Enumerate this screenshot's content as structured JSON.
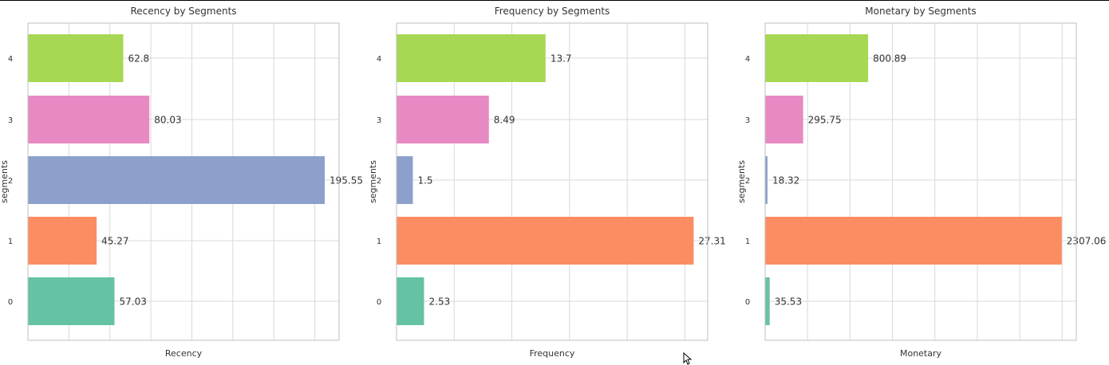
{
  "figure": {
    "ylabel": "segments",
    "bar_colors": [
      "#66c2a5",
      "#fc8d62",
      "#8da0cb",
      "#e78ac3",
      "#a6d854"
    ],
    "grid_color": "#d9d9d9",
    "frame_color": "#bfbfbf",
    "text_color": "#333333",
    "cursor_icon": "mouse-pointer-icon"
  },
  "chart_data": [
    {
      "type": "bar",
      "orientation": "horizontal",
      "title": "Recency by Segments",
      "xlabel": "Recency",
      "ylabel": "segments",
      "categories": [
        "0",
        "1",
        "2",
        "3",
        "4"
      ],
      "values": [
        57.03,
        45.27,
        195.55,
        80.03,
        62.8
      ],
      "value_labels": [
        "57.03",
        "45.27",
        "195.55",
        "80.03",
        "62.8"
      ],
      "xlim": [
        0,
        205
      ],
      "x_gridlines": [
        0,
        27,
        54,
        81,
        108,
        135,
        162,
        189
      ],
      "grid": true,
      "x_tick_labels": false
    },
    {
      "type": "bar",
      "orientation": "horizontal",
      "title": "Frequency by Segments",
      "xlabel": "Frequency",
      "ylabel": "segments",
      "categories": [
        "0",
        "1",
        "2",
        "3",
        "4"
      ],
      "values": [
        2.53,
        27.31,
        1.5,
        8.49,
        13.7
      ],
      "value_labels": [
        "2.53",
        "27.31",
        "1.5",
        "8.49",
        "13.7"
      ],
      "xlim": [
        0,
        28.6
      ],
      "x_gridlines": [
        0,
        5.3,
        10.6,
        15.9,
        21.2,
        26.5
      ],
      "grid": true,
      "x_tick_labels": false
    },
    {
      "type": "bar",
      "orientation": "horizontal",
      "title": "Monetary by Segments",
      "xlabel": "Monetary",
      "ylabel": "segments",
      "categories": [
        "0",
        "1",
        "2",
        "3",
        "4"
      ],
      "values": [
        35.53,
        2307.06,
        18.32,
        295.75,
        800.89
      ],
      "value_labels": [
        "35.53",
        "2307.06",
        "18.32",
        "295.75",
        "800.89"
      ],
      "xlim": [
        0,
        2420
      ],
      "x_gridlines": [
        0,
        330,
        660,
        990,
        1320,
        1650,
        1980,
        2310
      ],
      "grid": true,
      "x_tick_labels": false
    }
  ]
}
